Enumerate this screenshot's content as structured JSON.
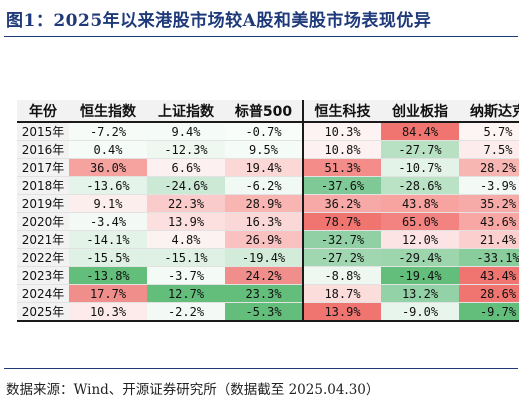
{
  "title": "图1：2025年以来港股市场较A股和美股市场表现优异",
  "source": "数据来源：Wind、开源证券研究所（数据截至 2025.04.30）",
  "columns": [
    "年份",
    "恒生指数",
    "上证指数",
    "标普500",
    "恒生科技",
    "创业板指",
    "纳斯达克"
  ],
  "rows": [
    {
      "year": "2015年",
      "values": [
        "-7.2%",
        "9.4%",
        "-0.7%",
        "10.3%",
        "84.4%",
        "5.7%"
      ]
    },
    {
      "year": "2016年",
      "values": [
        "0.4%",
        "-12.3%",
        "9.5%",
        "10.8%",
        "-27.7%",
        "7.5%"
      ]
    },
    {
      "year": "2017年",
      "values": [
        "36.0%",
        "6.6%",
        "19.4%",
        "51.3%",
        "-10.7%",
        "28.2%"
      ]
    },
    {
      "year": "2018年",
      "values": [
        "-13.6%",
        "-24.6%",
        "-6.2%",
        "-37.6%",
        "-28.6%",
        "-3.9%"
      ]
    },
    {
      "year": "2019年",
      "values": [
        "9.1%",
        "22.3%",
        "28.9%",
        "36.2%",
        "43.8%",
        "35.2%"
      ]
    },
    {
      "year": "2020年",
      "values": [
        "-3.4%",
        "13.9%",
        "16.3%",
        "78.7%",
        "65.0%",
        "43.6%"
      ]
    },
    {
      "year": "2021年",
      "values": [
        "-14.1%",
        "4.8%",
        "26.9%",
        "-32.7%",
        "12.0%",
        "21.4%"
      ]
    },
    {
      "year": "2022年",
      "values": [
        "-15.5%",
        "-15.1%",
        "-19.4%",
        "-27.2%",
        "-29.4%",
        "-33.1%"
      ]
    },
    {
      "year": "2023年",
      "values": [
        "-13.8%",
        "-3.7%",
        "24.2%",
        "-8.8%",
        "-19.4%",
        "43.4%"
      ]
    },
    {
      "year": "2024年",
      "values": [
        "17.7%",
        "12.7%",
        "23.3%",
        "18.7%",
        "13.2%",
        "28.6%"
      ]
    },
    {
      "year": "2025年",
      "values": [
        "10.3%",
        "-2.2%",
        "-5.3%",
        "13.9%",
        "-9.0%",
        "-9.7%"
      ]
    }
  ],
  "colors": {
    "title": "#1f3a7a",
    "header_bg": "#f2f2f2",
    "strong_red": "#f07470",
    "strong_green": "#63be7b"
  },
  "heat": [
    [
      "#f7fbf8",
      "#f5fbf7",
      "#f9fdfa",
      "#fdf3f3",
      "#f07470",
      "#fdf4f4"
    ],
    [
      "#f5fbf7",
      "#eef8f1",
      "#f5fbf7",
      "#fdf1f1",
      "#b7e1c2",
      "#fcecec"
    ],
    [
      "#f6a3a0",
      "#fdf0f0",
      "#fbd7d6",
      "#f48c89",
      "#e3f3e8",
      "#f8b6b3"
    ],
    [
      "#e5f4ea",
      "#cce9d5",
      "#f0f9f3",
      "#7ec996",
      "#bae2c5",
      "#f3faf5"
    ],
    [
      "#fdeeee",
      "#f9cccb",
      "#f8b5b2",
      "#f6a9a6",
      "#f7a4a1",
      "#f7aba8"
    ],
    [
      "#f3faf5",
      "#fbe0df",
      "#fad8d7",
      "#f07470",
      "#f28381",
      "#f8a7a4"
    ],
    [
      "#e3f3e8",
      "#fdf2f2",
      "#f9c1bf",
      "#90d0a4",
      "#fbe4e3",
      "#facfcd"
    ],
    [
      "#dff1e4",
      "#dff1e4",
      "#d2ecd9",
      "#a0d7b0",
      "#9dd5ad",
      "#89cd9d"
    ],
    [
      "#63be7b",
      "#f4fbf6",
      "#f08e8b",
      "#eef8f1",
      "#63be7b",
      "#f07470"
    ],
    [
      "#f08e8b",
      "#63be7b",
      "#63be7b",
      "#fbdddc",
      "#93d1a6",
      "#f07470"
    ],
    [
      "#fcebea",
      "#f3faf5",
      "#63be7b",
      "#f07470",
      "#e8f5ec",
      "#63be7b"
    ]
  ]
}
